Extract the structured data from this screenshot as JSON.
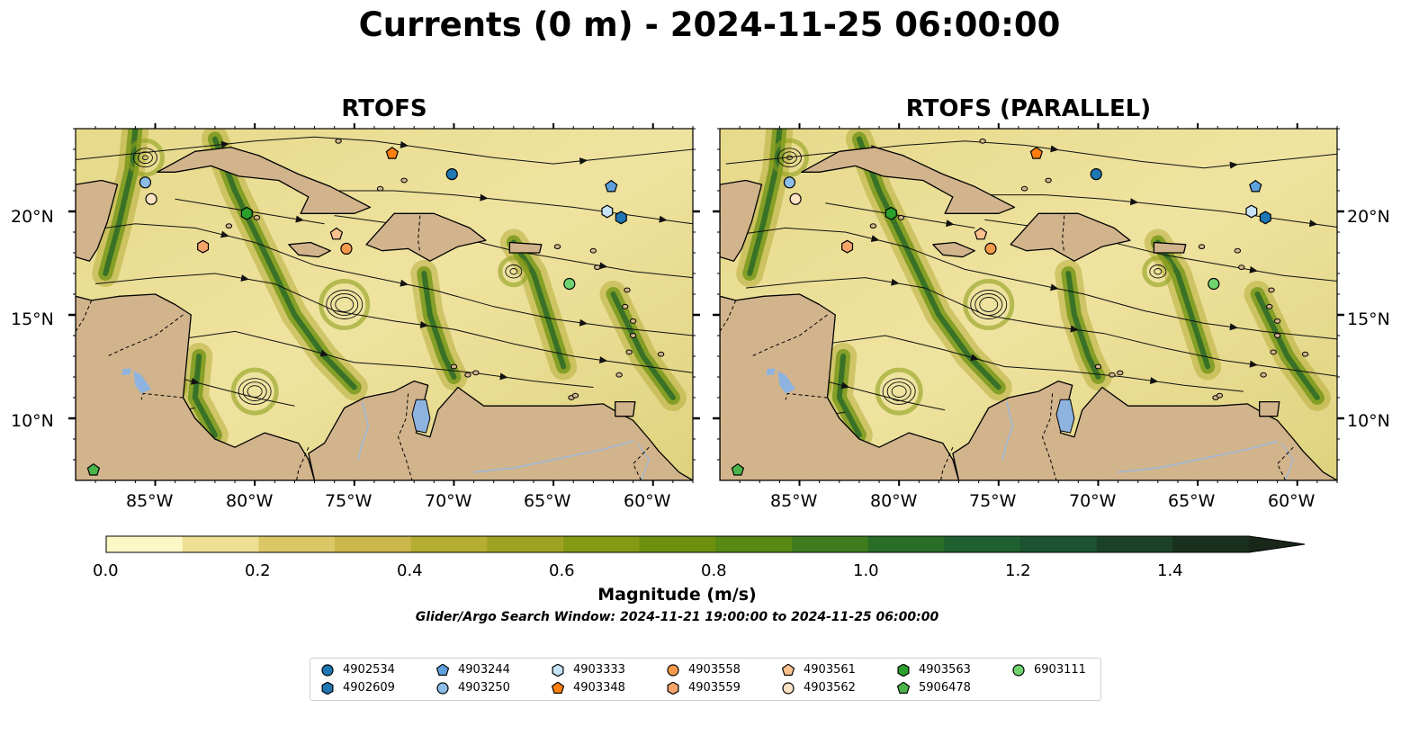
{
  "title": "Currents (0 m) - 2024-11-25 06:00:00",
  "panels": [
    {
      "title": "RTOFS"
    },
    {
      "title": "RTOFS (PARALLEL)"
    }
  ],
  "lat_labels": [
    "20°N",
    "15°N",
    "10°N"
  ],
  "lon_labels": [
    "85°W",
    "80°W",
    "75°W",
    "70°W",
    "65°W",
    "60°W"
  ],
  "colorbar": {
    "label": "Magnitude (m/s)",
    "ticks": [
      "0.0",
      "0.2",
      "0.4",
      "0.6",
      "0.8",
      "1.0",
      "1.2",
      "1.4"
    ],
    "min": 0.0,
    "max": 1.5,
    "extend": "max",
    "colors": [
      "#fcf7c4",
      "#eedf92",
      "#dcc767",
      "#ccb74c",
      "#b6ad33",
      "#9ea222",
      "#849a12",
      "#6d900f",
      "#588915",
      "#3f7c1f",
      "#2a6d27",
      "#1e6030",
      "#1b5330",
      "#1b4229",
      "#1a3120"
    ],
    "extend_color": "#18271a"
  },
  "search_window": "Glider/Argo Search Window: 2024-11-21 19:00:00 to 2024-11-25 06:00:00",
  "map_extent": {
    "lon": [
      -89,
      -58
    ],
    "lat": [
      7,
      24
    ]
  },
  "map_colors": {
    "land": "#d2b48c",
    "lakes": "#8db3de",
    "rivers": "#9fb7d6"
  },
  "floats": [
    {
      "id": "4902534",
      "marker": "circle",
      "color": "#1f77b4",
      "lon": -70.1,
      "lat": 21.8
    },
    {
      "id": "4902609",
      "marker": "hexagon",
      "color": "#1f77b4",
      "lon": -61.6,
      "lat": 19.7
    },
    {
      "id": "4903244",
      "marker": "pentagon",
      "color": "#5fa0de",
      "lon": -62.1,
      "lat": 21.2
    },
    {
      "id": "4903250",
      "marker": "circle",
      "color": "#8cbce8",
      "lon": -85.5,
      "lat": 21.4
    },
    {
      "id": "4903333",
      "marker": "hexagon",
      "color": "#c6e3f7",
      "lon": -62.3,
      "lat": 20.0
    },
    {
      "id": "4903348",
      "marker": "pentagon",
      "color": "#ff7f0e",
      "lon": -73.1,
      "lat": 22.8
    },
    {
      "id": "4903558",
      "marker": "circle",
      "color": "#f59a4a",
      "lon": -75.4,
      "lat": 18.2
    },
    {
      "id": "4903559",
      "marker": "hexagon",
      "color": "#f6a56a",
      "lon": -82.6,
      "lat": 18.3
    },
    {
      "id": "4903561",
      "marker": "pentagon",
      "color": "#fbc28f",
      "lon": -75.9,
      "lat": 18.9
    },
    {
      "id": "4903562",
      "marker": "circle",
      "color": "#fde2c4",
      "lon": -85.2,
      "lat": 20.6
    },
    {
      "id": "4903563",
      "marker": "hexagon",
      "color": "#2ca02c",
      "lon": -80.4,
      "lat": 19.9
    },
    {
      "id": "5906478",
      "marker": "pentagon",
      "color": "#4bb54b",
      "lon": -88.1,
      "lat": 7.5
    },
    {
      "id": "6903111",
      "marker": "circle",
      "color": "#6fd46f",
      "lon": -64.2,
      "lat": 16.5
    }
  ],
  "legend_columns": [
    [
      "4902534",
      "4902609"
    ],
    [
      "4903244",
      "4903250"
    ],
    [
      "4903333",
      "4903348"
    ],
    [
      "4903558",
      "4903559"
    ],
    [
      "4903561",
      "4903562"
    ],
    [
      "4903563",
      "5906478"
    ],
    [
      "6903111"
    ]
  ]
}
